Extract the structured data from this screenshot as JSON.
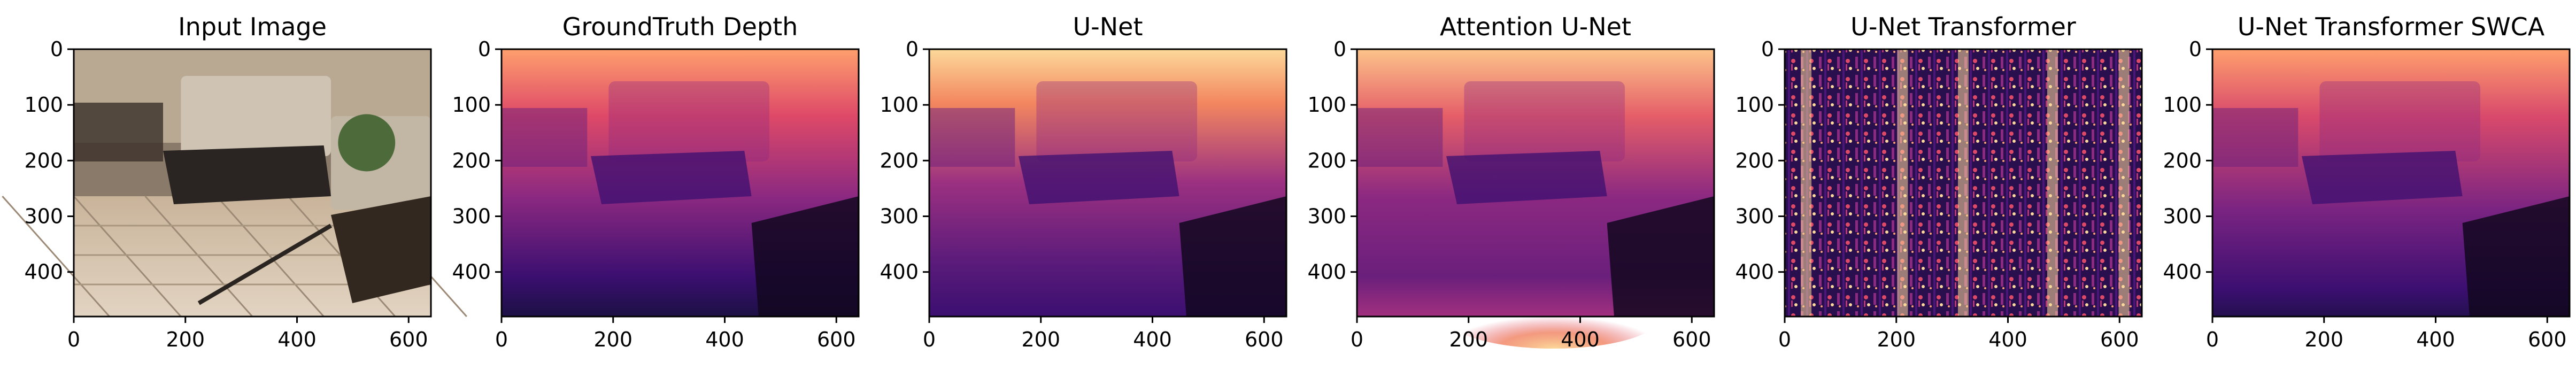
{
  "panels": [
    {
      "title": "Input Image",
      "kind": "rgb-photo"
    },
    {
      "title": "GroundTruth Depth",
      "kind": "depth-smooth"
    },
    {
      "title": "U-Net",
      "kind": "depth-unet"
    },
    {
      "title": "Attention U-Net",
      "kind": "depth-attention"
    },
    {
      "title": "U-Net Transformer",
      "kind": "depth-noisy"
    },
    {
      "title": "U-Net Transformer SWCA",
      "kind": "depth-swca"
    }
  ],
  "axes": {
    "x_ticks": [
      "0",
      "200",
      "400",
      "600"
    ],
    "x_tick_values": [
      0,
      200,
      400,
      600
    ],
    "y_ticks": [
      "0",
      "100",
      "200",
      "300",
      "400"
    ],
    "y_tick_values": [
      0,
      100,
      200,
      300,
      400
    ],
    "x_range": [
      0,
      640
    ],
    "y_range": [
      0,
      480
    ]
  },
  "colors": {
    "colormap": "magma",
    "magma_stops": [
      "#000004",
      "#3b0f70",
      "#8c2981",
      "#de4968",
      "#fe9f6d",
      "#fcfdbf"
    ]
  }
}
